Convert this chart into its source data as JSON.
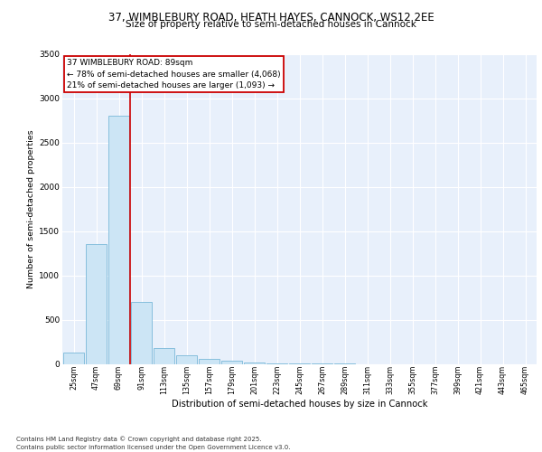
{
  "title_line1": "37, WIMBLEBURY ROAD, HEATH HAYES, CANNOCK, WS12 2EE",
  "title_line2": "Size of property relative to semi-detached houses in Cannock",
  "xlabel": "Distribution of semi-detached houses by size in Cannock",
  "ylabel": "Number of semi-detached properties",
  "categories": [
    "25sqm",
    "47sqm",
    "69sqm",
    "91sqm",
    "113sqm",
    "135sqm",
    "157sqm",
    "179sqm",
    "201sqm",
    "223sqm",
    "245sqm",
    "267sqm",
    "289sqm",
    "311sqm",
    "333sqm",
    "355sqm",
    "377sqm",
    "399sqm",
    "421sqm",
    "443sqm",
    "465sqm"
  ],
  "values": [
    130,
    1350,
    2800,
    700,
    180,
    100,
    60,
    40,
    20,
    5,
    3,
    2,
    1,
    0,
    0,
    0,
    0,
    0,
    0,
    0,
    0
  ],
  "bar_color": "#cce5f5",
  "bar_edge_color": "#7ab8d9",
  "vline_color": "#cc0000",
  "vline_pos": 2.5,
  "annotation_text": "37 WIMBLEBURY ROAD: 89sqm\n← 78% of semi-detached houses are smaller (4,068)\n21% of semi-detached houses are larger (1,093) →",
  "annotation_box_edge_color": "#cc0000",
  "ylim": [
    0,
    3500
  ],
  "yticks": [
    0,
    500,
    1000,
    1500,
    2000,
    2500,
    3000,
    3500
  ],
  "background_color": "#e8f0fb",
  "grid_color": "#ffffff",
  "footer_line1": "Contains HM Land Registry data © Crown copyright and database right 2025.",
  "footer_line2": "Contains public sector information licensed under the Open Government Licence v3.0."
}
